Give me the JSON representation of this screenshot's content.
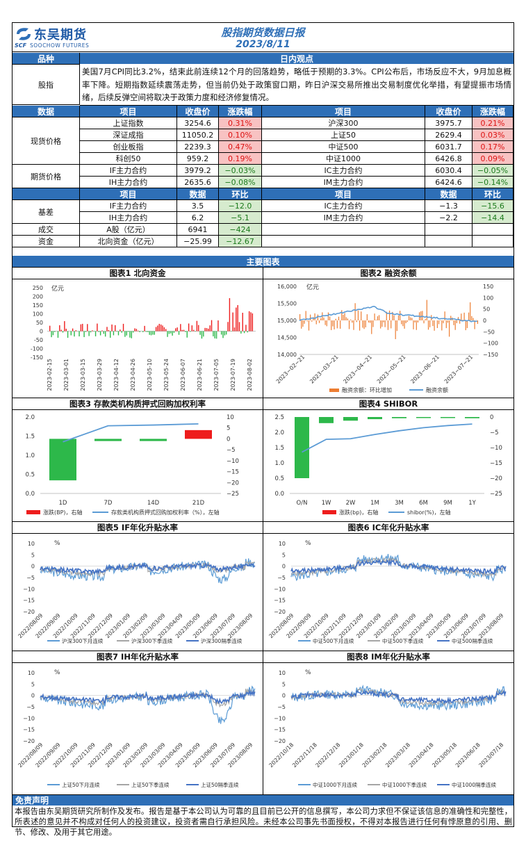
{
  "header": {
    "logo_cn": "东吴期货",
    "logo_en": "SOOCHOW FUTURES",
    "logo_mark": "SCF",
    "title": "股指期货数据日报",
    "date": "2023/8/11"
  },
  "view": {
    "col1": "品种",
    "col2": "日内观点",
    "row_label": "股指",
    "text": "美国7月CPI同比3.2%，结束此前连续12个月的回落趋势，略低于预期的3.3%。CPI公布后，市场反应不大，9月加息概率下降。短期指数延续震荡走势，但当前仍处于政策窗口期，昨日沪深交易所推出交易制度优化举措，有望提振市场情绪，后续反弹空间将取决于政策力度和经济修复情况。"
  },
  "table1": {
    "headers": [
      "数据",
      "项目",
      "收盘价",
      "涨跌幅",
      "项目",
      "收盘价",
      "涨跌幅"
    ],
    "spot_label": "现货价格",
    "spot": [
      [
        "上证指数",
        "3254.6",
        "0.31%",
        "沪深300",
        "3975.7",
        "0.21%"
      ],
      [
        "深证成指",
        "11050.2",
        "0.10%",
        "上证50",
        "2629.4",
        "0.03%"
      ],
      [
        "创业板指",
        "2239.3",
        "0.47%",
        "中证500",
        "6031.7",
        "0.17%"
      ],
      [
        "科创50",
        "959.2",
        "0.19%",
        "中证1000",
        "6426.8",
        "0.09%"
      ]
    ],
    "fut_label": "期货价格",
    "fut": [
      [
        "IF主力合约",
        "3979.2",
        "−0.03%",
        "IC主力合约",
        "6030.4",
        "−0.05%"
      ],
      [
        "IH主力合约",
        "2635.6",
        "−0.08%",
        "IM主力合约",
        "6424.6",
        "−0.14%"
      ]
    ]
  },
  "table2": {
    "headers": [
      "项目",
      "数据",
      "环比",
      "项目",
      "数据",
      "环比"
    ],
    "basis_label": "基差",
    "basis": [
      [
        "IF主力合约",
        "3.5",
        "−12.0",
        "IC主力合约",
        "−1.3",
        "−15.6"
      ],
      [
        "IH主力合约",
        "6.2",
        "−5.1",
        "IM主力合约",
        "−2.2",
        "−14.4"
      ]
    ],
    "vol_label": "成交",
    "vol": [
      "A股（亿元）",
      "6941",
      "−424"
    ],
    "cap_label": "资金",
    "cap": [
      "北向资金（亿元）",
      "−25.99",
      "−12.67"
    ]
  },
  "charts_header": "主要图表",
  "chart_titles": [
    "图表1 北向资金",
    "图表2 融资余额",
    "图表3 存款类机构质押式回购加权利率",
    "图表4 SHIBOR",
    "图表5 IF年化升贴水率",
    "图表6 IC年化升贴水率",
    "图表7 IH年化升贴水率",
    "图表8 IM年化升贴水率"
  ],
  "chart_data": [
    {
      "type": "bar",
      "title": "图表1 北向资金",
      "ylabel": "亿元",
      "ylim": [
        -150,
        250
      ],
      "yticks": [
        250,
        200,
        150,
        100,
        50,
        0,
        -50,
        -100,
        -150
      ],
      "x_labels": [
        "2023-02-15",
        "2023-03-01",
        "2023-03-15",
        "2023-03-29",
        "2023-04-12",
        "2023-04-26",
        "2023-05-10",
        "2023-05-24",
        "2023-06-07",
        "2023-06-21",
        "2023-07-05",
        "2023-07-19",
        "2023-08-02"
      ]
    },
    {
      "type": "line",
      "title": "图表2 融资余额",
      "ylim_left": [
        14000,
        16000
      ],
      "yticks_left": [
        "16,000",
        "15,500",
        "15,000",
        "14,500",
        "14,000"
      ],
      "ylim_right": [
        -150,
        150
      ],
      "yticks_right": [
        "150",
        "100",
        "50",
        "0",
        "−50",
        "−100",
        "−150"
      ],
      "ylabel": "亿元",
      "x_labels": [
        "2023−02−21",
        "2023−03−21",
        "2023−04−21",
        "2023−05−21",
        "2023−06−21",
        "2023−07−21"
      ],
      "legend": [
        "融资余额：环比增加",
        "融资余额"
      ]
    },
    {
      "type": "bar",
      "title": "图表3 存款类机构质押式回购加权利率",
      "categories": [
        "1D",
        "7D",
        "14D",
        "21D"
      ],
      "series": [
        {
          "name": "涨跌(BP)，右轴",
          "values": [
            -19,
            -1,
            -1,
            4
          ]
        },
        {
          "name": "存款类机构质押式回购加权利率（%），左轴",
          "values": [
            1.35,
            1.77,
            1.79,
            1.82
          ]
        }
      ],
      "ylim_left": [
        0,
        2
      ],
      "yticks_left": [
        "2.0",
        "1.5",
        "1.0",
        "0.5",
        "0.0"
      ],
      "ylim_right": [
        -25,
        10
      ],
      "yticks_right": [
        "10",
        "5",
        "0",
        "−5",
        "−10",
        "−15",
        "−20",
        "−25"
      ]
    },
    {
      "type": "bar",
      "title": "图表4 SHIBOR",
      "categories": [
        "O/N",
        "1W",
        "2W",
        "1M",
        "3M",
        "6M",
        "9M",
        "1Y"
      ],
      "series": [
        {
          "name": "涨跌(bp)，右轴",
          "values": [
            -20,
            -2,
            -1.2,
            -0.7,
            -0.4,
            -0.2,
            -0.1,
            -0.4
          ]
        },
        {
          "name": "shibor(%)，左轴",
          "values": [
            1.35,
            1.77,
            1.79,
            1.93,
            2.05,
            2.15,
            2.22,
            2.27
          ]
        }
      ],
      "ylim_left": [
        0,
        2.5
      ],
      "yticks_left": [
        "2.5",
        "2.0",
        "1.5",
        "1.0",
        "0.5",
        "0.0"
      ],
      "ylim_right": [
        -25,
        0
      ],
      "yticks_right": [
        "0",
        "−5",
        "−10",
        "−15",
        "−20",
        "−25"
      ]
    },
    {
      "type": "line",
      "title": "图表5 IF年化升贴水率",
      "ylabel": "%",
      "yticks": [
        "10",
        "5",
        "0",
        "−5",
        "−10",
        "−15",
        "−20"
      ],
      "x_labels": [
        "2022/08/09",
        "2022/09/09",
        "2022/10/09",
        "2022/11/09",
        "2022/12/09",
        "2023/01/09",
        "2023/02/09",
        "2023/03/09",
        "2023/04/09",
        "2023/05/09",
        "2023/06/09",
        "2023/07/09",
        "2023/08/09"
      ],
      "legend": [
        "沪深300下月连续",
        "沪深300下季连续",
        "沪深300隔季连续"
      ]
    },
    {
      "type": "line",
      "title": "图表6 IC年化升贴水率",
      "ylabel": "%",
      "yticks": [
        "10",
        "5",
        "0",
        "−5",
        "−10",
        "−15",
        "−20"
      ],
      "x_labels": [
        "2022/08/09",
        "2022/09/09",
        "2022/10/09",
        "2022/11/09",
        "2022/12/09",
        "2023/01/09",
        "2023/02/09",
        "2023/03/09",
        "2023/04/09",
        "2023/05/09",
        "2023/06/09",
        "2023/07/09",
        "2023/08/09"
      ],
      "legend": [
        "中证500下月连续",
        "中证500下季连续",
        "中证500隔季连续"
      ]
    },
    {
      "type": "line",
      "title": "图表7 IH年化升贴水率",
      "ylabel": "%",
      "yticks": [
        "10",
        "5",
        "0",
        "−5",
        "−10",
        "−15",
        "−20"
      ],
      "x_labels": [
        "2022/08/09",
        "2022/09/09",
        "2022/10/09",
        "2022/11/09",
        "2022/12/09",
        "2023/01/09",
        "2023/02/09",
        "2023/03/09",
        "2023/04/09",
        "2023/05/09",
        "2023/06/09",
        "2023/07/09",
        "2023/08/09"
      ],
      "legend": [
        "上证50下月连续",
        "上证50下季连续",
        "上证50隔季连续"
      ]
    },
    {
      "type": "line",
      "title": "图表8 IM年化升贴水率",
      "ylabel": "%",
      "yticks": [
        "10",
        "5",
        "0",
        "−5",
        "−10",
        "−15",
        "−20"
      ],
      "x_labels": [
        "2022/10/18",
        "2022/11/18",
        "2022/12/18",
        "2023/01/18",
        "2023/02/18",
        "2023/03/18",
        "2023/04/18",
        "2023/05/18",
        "2023/06/18",
        "2023/07/18"
      ],
      "legend": [
        "中证1000下月连续",
        "中证1000下季连续",
        "中证1000隔季连续"
      ]
    }
  ],
  "colors": {
    "header_blue": "#2e6fb7",
    "series_lightblue": "#5b9bd5",
    "series_gray": "#a5a5a5",
    "series_darkblue": "#4472c4",
    "bar_green": "#2db84a",
    "bar_red": "#ee1c1c",
    "bar_orange": "#ed7d31"
  },
  "disclaimer": {
    "title": "免责声明",
    "text": "本报告由东吴期货研究所制作及发布。报告是基于本公司认为可靠的且目前已公开的信息撰写，本公司力求但不保证该信息的准确性和完整性，所表述的意见并不构成对任何人的投资建议，投资者需自行承担风险。未经本公司事先书面授权，不得对本报告进行任何有悖原意的引用、删节、修改、及用于其它用途。"
  }
}
